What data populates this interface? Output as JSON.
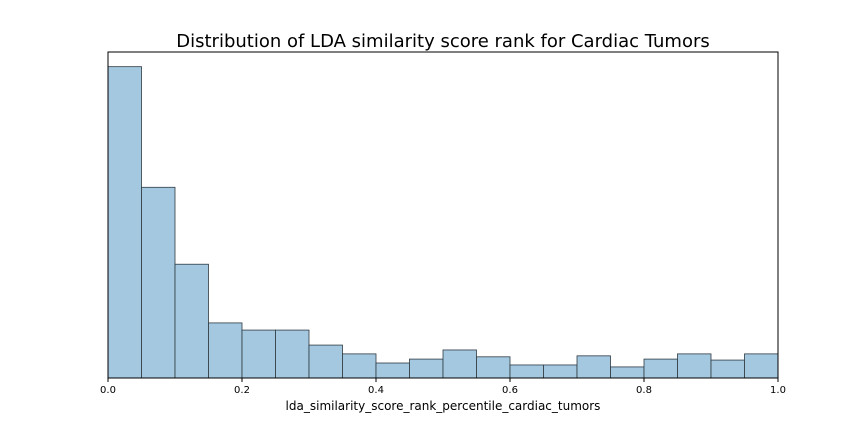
{
  "chart_data": {
    "type": "bar",
    "subtype": "histogram",
    "title": "Distribution of LDA similarity score rank for Cardiac Tumors",
    "xlabel": "lda_similarity_score_rank_percentile_cardiac_tumors",
    "ylabel": "",
    "xlim": [
      0,
      1
    ],
    "ylim": [
      0,
      1
    ],
    "xticks": [
      "0.0",
      "0.2",
      "0.4",
      "0.6",
      "0.8",
      "1.0"
    ],
    "yticks_visible": false,
    "grid": false,
    "bin_edges": [
      0.0,
      0.05,
      0.1,
      0.15,
      0.2,
      0.25,
      0.3,
      0.35,
      0.4,
      0.45,
      0.5,
      0.55,
      0.6,
      0.65,
      0.7,
      0.75,
      0.8,
      0.85,
      0.9,
      0.95,
      1.0
    ],
    "values": [
      0.955,
      0.585,
      0.349,
      0.169,
      0.147,
      0.147,
      0.101,
      0.074,
      0.046,
      0.058,
      0.086,
      0.065,
      0.04,
      0.04,
      0.068,
      0.034,
      0.058,
      0.074,
      0.055,
      0.074
    ],
    "colors": {
      "bar_fill": "#a3c8e0",
      "bar_edge": "#2f3a42",
      "axes": "#000000"
    }
  }
}
